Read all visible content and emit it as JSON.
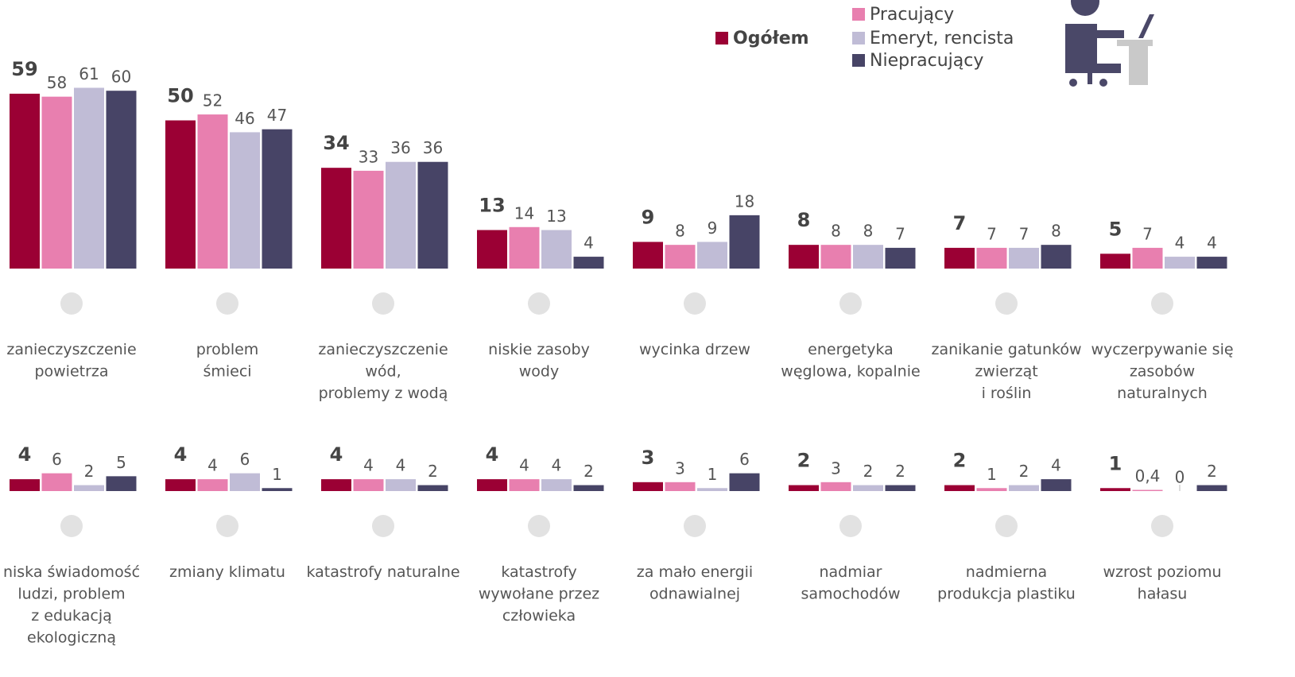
{
  "chart_data": {
    "type": "bar",
    "categories": [
      "zanieczyszczenie\npowietrza",
      "problem\nśmieci",
      "zanieczyszczenie\nwód,\nproblemy z wodą",
      "niskie zasoby\nwody",
      "wycinka drzew",
      "energetyka\nwęglowa, kopalnie",
      "zanikanie gatunków\nzwierząt\ni roślin",
      "wyczerpywanie się\nzasobów\nnaturalnych",
      "niska świadomość\nludzi, problem\nz edukacją\nekologiczną",
      "zmiany klimatu",
      "katastrofy naturalne",
      "katastrofy\nwywołane przez\nczłowieka",
      "za mało energii\nodnawialnej",
      "nadmiar\nsamochodów",
      "nadmierna\nprodukcja plastiku",
      "wzrost poziomu\nhałasu"
    ],
    "series": [
      {
        "name": "Ogółem",
        "color": "#9b0034",
        "values": [
          59,
          50,
          34,
          13,
          9,
          8,
          7,
          5,
          4,
          4,
          4,
          4,
          3,
          2,
          2,
          1
        ]
      },
      {
        "name": "Pracujący",
        "color": "#e87faf",
        "values": [
          58,
          52,
          33,
          14,
          8,
          8,
          7,
          7,
          6,
          4,
          4,
          4,
          3,
          3,
          1,
          0.4
        ],
        "value_labels": [
          "58",
          "52",
          "33",
          "14",
          "8",
          "8",
          "7",
          "7",
          "6",
          "4",
          "4",
          "4",
          "3",
          "3",
          "1",
          "0,4"
        ]
      },
      {
        "name": "Emeryt, rencista",
        "color": "#c0bcd6",
        "values": [
          61,
          46,
          36,
          13,
          9,
          8,
          7,
          4,
          2,
          6,
          4,
          4,
          1,
          2,
          2,
          0
        ]
      },
      {
        "name": "Niepracujący",
        "color": "#474466",
        "values": [
          60,
          47,
          36,
          4,
          18,
          7,
          8,
          4,
          5,
          1,
          2,
          2,
          6,
          2,
          4,
          2
        ]
      }
    ]
  }
}
